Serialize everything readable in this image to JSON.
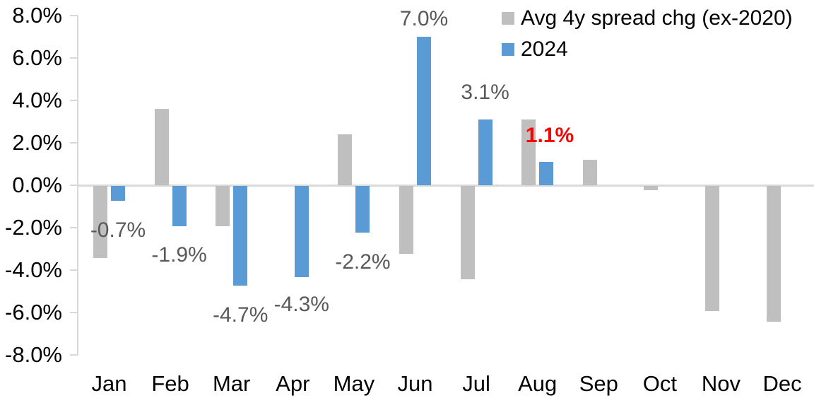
{
  "chart_data": {
    "type": "bar",
    "title": "",
    "categories": [
      "Jan",
      "Feb",
      "Mar",
      "Apr",
      "May",
      "Jun",
      "Jul",
      "Aug",
      "Sep",
      "Oct",
      "Nov",
      "Dec"
    ],
    "series": [
      {
        "name": "Avg 4y spread chg (ex-2020)",
        "color": "#BFBFBF",
        "values": [
          -3.4,
          3.6,
          -1.9,
          0.0,
          2.4,
          -3.2,
          -4.4,
          3.1,
          1.2,
          -0.2,
          -5.9,
          -6.4
        ]
      },
      {
        "name": "2024",
        "color": "#5B9BD5",
        "values": [
          -0.7,
          -1.9,
          -4.7,
          -4.3,
          -2.2,
          7.0,
          3.1,
          1.1,
          null,
          null,
          null,
          null
        ]
      }
    ],
    "data_labels": [
      {
        "month": "Jan",
        "month_index": 0,
        "text": "-0.7%",
        "color": "#595959",
        "bold": false
      },
      {
        "month": "Feb",
        "month_index": 1,
        "text": "-1.9%",
        "color": "#595959",
        "bold": false
      },
      {
        "month": "Mar",
        "month_index": 2,
        "text": "-4.7%",
        "color": "#595959",
        "bold": false
      },
      {
        "month": "Apr",
        "month_index": 3,
        "text": "-4.3%",
        "color": "#595959",
        "bold": false
      },
      {
        "month": "May",
        "month_index": 4,
        "text": "-2.2%",
        "color": "#595959",
        "bold": false
      },
      {
        "month": "Jun",
        "month_index": 5,
        "text": "7.0%",
        "color": "#595959",
        "bold": false
      },
      {
        "month": "Jul",
        "month_index": 6,
        "text": "3.1%",
        "color": "#595959",
        "bold": false
      },
      {
        "month": "Aug",
        "month_index": 7,
        "text": "1.1%",
        "color": "#FF0000",
        "bold": true
      }
    ],
    "y_axis": {
      "tick_labels": [
        "8.0%",
        "6.0%",
        "4.0%",
        "2.0%",
        "0.0%",
        "-2.0%",
        "-4.0%",
        "-6.0%",
        "-8.0%"
      ],
      "min": -8,
      "max": 8,
      "step": 2,
      "unit": "%"
    },
    "x_axis": {
      "label": ""
    },
    "legend": {
      "position": "top-right",
      "entries": [
        {
          "label": "Avg 4y spread chg (ex-2020)",
          "color": "#BFBFBF"
        },
        {
          "label": "2024",
          "color": "#5B9BD5"
        }
      ]
    },
    "grid": false
  },
  "colors": {
    "background": "#FFFFFF",
    "axis_line": "#D9D9D9",
    "axis_text": "#000000",
    "data_label_text": "#595959",
    "highlight_label_text": "#FF0000",
    "series_avg": "#BFBFBF",
    "series_2024": "#5B9BD5"
  }
}
